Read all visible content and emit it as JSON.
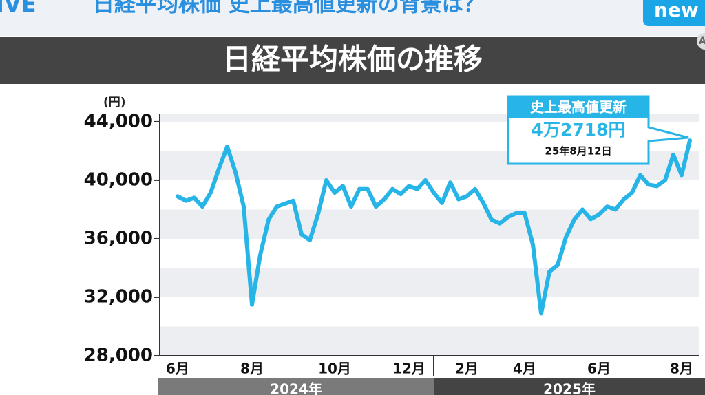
{
  "header": {
    "live": "IVE",
    "headline": "日経平均株価 史上最高値更新の背景は？",
    "logo": "new",
    "corner": "A"
  },
  "chart_data": {
    "type": "line",
    "title": "日経平均株価の推移",
    "y_unit": "(円)",
    "categories": [
      "6月",
      null,
      null,
      null,
      null,
      null,
      null,
      null,
      null,
      "8月",
      null,
      null,
      null,
      null,
      null,
      null,
      null,
      null,
      null,
      "10月",
      null,
      null,
      null,
      null,
      null,
      null,
      null,
      null,
      "12月",
      null,
      null,
      null,
      null,
      null,
      null,
      "2月",
      null,
      null,
      null,
      null,
      null,
      null,
      "4月",
      null,
      null,
      null,
      null,
      null,
      null,
      null,
      null,
      "6月",
      null,
      null,
      null,
      null,
      null,
      null,
      null,
      null,
      null,
      "8月",
      null
    ],
    "year_groups": [
      "2024年",
      "2025年"
    ],
    "series": [
      {
        "name": "日経平均株価",
        "color": "#27b4e6",
        "values": [
          38900,
          38600,
          38800,
          38200,
          39150,
          40800,
          42300,
          40550,
          38200,
          31500,
          34900,
          37300,
          38200,
          38400,
          38600,
          36300,
          35900,
          37700,
          40000,
          39150,
          39600,
          38200,
          39400,
          39400,
          38200,
          38700,
          39400,
          39050,
          39600,
          39400,
          40000,
          39150,
          38450,
          39850,
          38700,
          38900,
          39400,
          38450,
          37300,
          37050,
          37500,
          37750,
          37750,
          35600,
          30900,
          33750,
          34200,
          36100,
          37300,
          38000,
          37350,
          37650,
          38200,
          38000,
          38700,
          39150,
          40350,
          39700,
          39600,
          40000,
          41750,
          40350,
          42718
        ]
      }
    ],
    "ylim": [
      28000,
      44560
    ],
    "yticks": [
      {
        "value": 28000,
        "label": "28,000"
      },
      {
        "value": 32000,
        "label": "32,000"
      },
      {
        "value": 36000,
        "label": "36,000"
      },
      {
        "value": 40000,
        "label": "40,000"
      },
      {
        "value": 44000,
        "label": "44,000"
      }
    ],
    "annotation": {
      "title": "史上最高値更新",
      "value_label": "4万2718円",
      "date": "25年8月12日"
    }
  }
}
